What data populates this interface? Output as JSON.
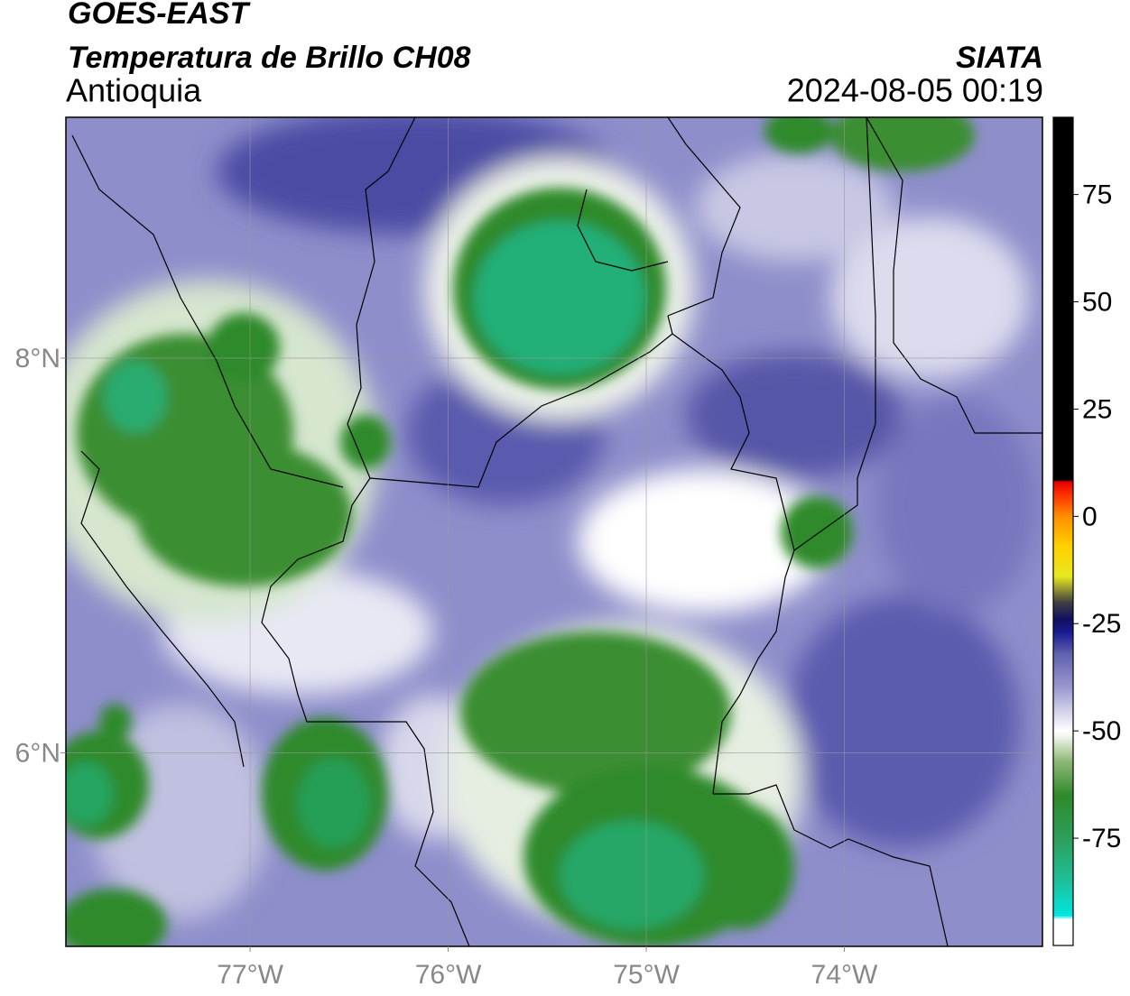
{
  "chart_data": {
    "type": "map",
    "title": "GOES-EAST",
    "subtitle": "Temperatura de Brillo CH08",
    "region": "Antioquia",
    "source": "SIATA",
    "timestamp": "2024-08-05 00:19",
    "xlim": [
      -77.93,
      -73.0
    ],
    "ylim": [
      5.02,
      9.22
    ],
    "xticks": [
      {
        "value": -77,
        "label": "77°W"
      },
      {
        "value": -76,
        "label": "76°W"
      },
      {
        "value": -75,
        "label": "75°W"
      },
      {
        "value": -74,
        "label": "74°W"
      }
    ],
    "yticks": [
      {
        "value": 8,
        "label": "8°N"
      },
      {
        "value": 6,
        "label": "6°N"
      }
    ],
    "grid": true,
    "colorbar": {
      "clim": [
        -100,
        93
      ],
      "ticks": [
        75,
        50,
        25,
        0,
        -25,
        -50,
        -75
      ],
      "stops": [
        {
          "value": -100,
          "color": "#ffffff"
        },
        {
          "value": -94,
          "color": "#ffffff"
        },
        {
          "value": -93,
          "color": "#00e5e0"
        },
        {
          "value": -85,
          "color": "#1fbf9a"
        },
        {
          "value": -75,
          "color": "#2e9e5a"
        },
        {
          "value": -65,
          "color": "#2f8a2a"
        },
        {
          "value": -57,
          "color": "#8fb878"
        },
        {
          "value": -52,
          "color": "#e6eee0"
        },
        {
          "value": -50,
          "color": "#ffffff"
        },
        {
          "value": -46,
          "color": "#d8d8ec"
        },
        {
          "value": -40,
          "color": "#9a9ad0"
        },
        {
          "value": -32,
          "color": "#6060b0"
        },
        {
          "value": -27,
          "color": "#1a1a90"
        },
        {
          "value": -24,
          "color": "#101060"
        },
        {
          "value": -20,
          "color": "#404040"
        },
        {
          "value": -14,
          "color": "#e8e820"
        },
        {
          "value": -7,
          "color": "#ffd000"
        },
        {
          "value": 0,
          "color": "#ff9000"
        },
        {
          "value": 5,
          "color": "#ff3000"
        },
        {
          "value": 8,
          "color": "#e80000"
        },
        {
          "value": 8.5,
          "color": "#000000"
        },
        {
          "value": 93,
          "color": "#000000"
        }
      ]
    }
  }
}
